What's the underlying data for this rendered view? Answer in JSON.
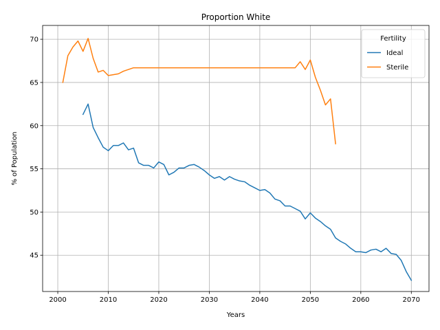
{
  "chart_data": {
    "type": "line",
    "title": "Proportion White",
    "xlabel": "Years",
    "ylabel": "% of Population",
    "xlim": [
      1997,
      2073.5
    ],
    "ylim": [
      40.8,
      71.6
    ],
    "xticks": [
      2000,
      2010,
      2020,
      2030,
      2040,
      2050,
      2060,
      2070
    ],
    "yticks": [
      45,
      50,
      55,
      60,
      65,
      70
    ],
    "grid": true,
    "legend": {
      "title": "Fertility",
      "placement": "top-right"
    },
    "series": [
      {
        "name": "Ideal",
        "color": "#1f77b4",
        "x": [
          2005,
          2006,
          2007,
          2008,
          2009,
          2010,
          2011,
          2012,
          2013,
          2014,
          2015,
          2016,
          2017,
          2018,
          2019,
          2020,
          2021,
          2022,
          2023,
          2024,
          2025,
          2026,
          2027,
          2028,
          2029,
          2030,
          2031,
          2032,
          2033,
          2034,
          2035,
          2036,
          2037,
          2038,
          2039,
          2040,
          2041,
          2042,
          2043,
          2044,
          2045,
          2046,
          2047,
          2048,
          2049,
          2050,
          2051,
          2052,
          2053,
          2054,
          2055,
          2056,
          2057,
          2058,
          2059,
          2060,
          2061,
          2062,
          2063,
          2064,
          2065,
          2066,
          2067,
          2068,
          2069,
          2070
        ],
        "y": [
          61.3,
          62.5,
          59.8,
          58.6,
          57.5,
          57.1,
          57.7,
          57.7,
          58.0,
          57.2,
          57.4,
          55.7,
          55.4,
          55.4,
          55.1,
          55.8,
          55.5,
          54.3,
          54.6,
          55.1,
          55.1,
          55.4,
          55.5,
          55.2,
          54.8,
          54.3,
          53.9,
          54.1,
          53.7,
          54.1,
          53.8,
          53.6,
          53.5,
          53.1,
          52.8,
          52.5,
          52.6,
          52.2,
          51.5,
          51.3,
          50.7,
          50.7,
          50.4,
          50.1,
          49.2,
          49.9,
          49.3,
          48.9,
          48.4,
          48.0,
          47.0,
          46.6,
          46.3,
          45.8,
          45.4,
          45.4,
          45.3,
          45.6,
          45.7,
          45.4,
          45.8,
          45.2,
          45.1,
          44.4,
          43.1,
          42.1
        ]
      },
      {
        "name": "Sterile",
        "color": "#ff7f0e",
        "x": [
          2001,
          2002,
          2003,
          2004,
          2005,
          2006,
          2007,
          2008,
          2009,
          2010,
          2011,
          2012,
          2013,
          2014,
          2015,
          2016,
          2017,
          2018,
          2019,
          2020,
          2021,
          2022,
          2023,
          2024,
          2025,
          2026,
          2027,
          2028,
          2029,
          2030,
          2031,
          2032,
          2033,
          2034,
          2035,
          2036,
          2037,
          2038,
          2039,
          2040,
          2041,
          2042,
          2043,
          2044,
          2045,
          2046,
          2047,
          2048,
          2049,
          2050,
          2051,
          2052,
          2053,
          2054,
          2055
        ],
        "y": [
          65.0,
          68.1,
          69.1,
          69.8,
          68.6,
          70.1,
          67.8,
          66.2,
          66.4,
          65.8,
          65.9,
          66.0,
          66.3,
          66.5,
          66.7,
          66.7,
          66.7,
          66.7,
          66.7,
          66.7,
          66.7,
          66.7,
          66.7,
          66.7,
          66.7,
          66.7,
          66.7,
          66.7,
          66.7,
          66.7,
          66.7,
          66.7,
          66.7,
          66.7,
          66.7,
          66.7,
          66.7,
          66.7,
          66.7,
          66.7,
          66.7,
          66.7,
          66.7,
          66.7,
          66.7,
          66.7,
          66.7,
          67.4,
          66.5,
          67.6,
          65.6,
          64.1,
          62.4,
          63.1,
          57.9
        ]
      }
    ]
  }
}
